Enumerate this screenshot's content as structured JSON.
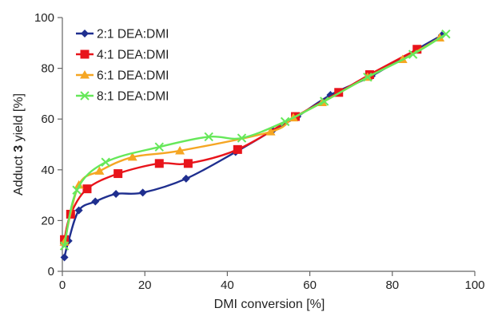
{
  "chart_data": {
    "type": "line",
    "title": "",
    "xlabel": "DMI conversion [%]",
    "ylabel": {
      "prefix": "Adduct ",
      "bold": "3",
      "suffix": " yield [%]"
    },
    "xlim": [
      0,
      100
    ],
    "ylim": [
      0,
      100
    ],
    "xticks": [
      0,
      20,
      40,
      60,
      80,
      100
    ],
    "yticks": [
      0,
      20,
      40,
      60,
      80,
      100
    ],
    "grid": false,
    "legend_position": "top-left",
    "series": [
      {
        "name": "2:1 DEA:DMI",
        "color": "#1f2f8f",
        "marker": "diamond",
        "x": [
          0.5,
          1.5,
          4,
          8,
          13,
          19.5,
          30,
          42,
          51,
          57,
          65,
          75,
          86,
          92
        ],
        "y": [
          5.5,
          12,
          24,
          27.5,
          30.5,
          31,
          36.5,
          47,
          55.5,
          61,
          69.5,
          77,
          87.5,
          93
        ]
      },
      {
        "name": "4:1 DEA:DMI",
        "color": "#e8141b",
        "marker": "square",
        "x": [
          0.5,
          2,
          6,
          13.5,
          23.5,
          30.5,
          42.5,
          56.5,
          67,
          74.5,
          86
        ],
        "y": [
          12.5,
          22.5,
          32.5,
          38.5,
          42.5,
          42.5,
          48,
          61,
          70.5,
          77.5,
          87.5
        ]
      },
      {
        "name": "6:1 DEA:DMI",
        "color": "#f5a623",
        "marker": "triangle",
        "x": [
          0.5,
          4,
          9,
          17,
          28.5,
          50.5,
          56,
          63,
          74,
          82.5,
          91.5
        ],
        "y": [
          11.5,
          34,
          39.5,
          45,
          47.5,
          55,
          60.5,
          66.5,
          76.5,
          83.5,
          92
        ]
      },
      {
        "name": "8:1 DEA:DMI",
        "color": "#66e85a",
        "marker": "x",
        "x": [
          0.5,
          3.5,
          10.5,
          23.5,
          35.5,
          43.5,
          54,
          63.5,
          74,
          85,
          93
        ],
        "y": [
          10,
          32,
          43,
          49,
          53,
          52.5,
          59,
          67,
          76.5,
          85.5,
          93.5
        ]
      }
    ]
  }
}
